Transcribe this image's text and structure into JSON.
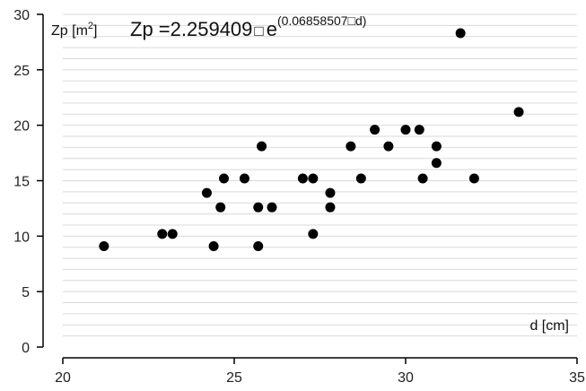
{
  "chart_data": {
    "type": "scatter",
    "title": "",
    "xlabel": "d [cm]",
    "ylabel": {
      "base": "Zp [m",
      "sup": "2",
      "close": "]"
    },
    "annotation": {
      "lhs": "Zp =",
      "coef": "2.259409",
      "sep": "□",
      "e": "e",
      "exponent": "(0.06858507□d)"
    },
    "xlim": [
      20,
      35
    ],
    "ylim": [
      0,
      30
    ],
    "x_ticks": [
      20,
      25,
      30,
      35
    ],
    "y_ticks": [
      0,
      5,
      10,
      15,
      20,
      25,
      30
    ],
    "grid": true,
    "marker_color": "#000000",
    "grid_color": "#d9d9d9",
    "points": [
      {
        "x": 21.2,
        "y": 9.1
      },
      {
        "x": 22.9,
        "y": 10.2
      },
      {
        "x": 23.2,
        "y": 10.2
      },
      {
        "x": 24.2,
        "y": 13.9
      },
      {
        "x": 24.4,
        "y": 9.1
      },
      {
        "x": 24.6,
        "y": 12.6
      },
      {
        "x": 24.7,
        "y": 15.2
      },
      {
        "x": 25.3,
        "y": 15.2
      },
      {
        "x": 25.7,
        "y": 12.6
      },
      {
        "x": 25.7,
        "y": 9.1
      },
      {
        "x": 25.8,
        "y": 18.1
      },
      {
        "x": 26.1,
        "y": 12.6
      },
      {
        "x": 27.0,
        "y": 15.2
      },
      {
        "x": 27.3,
        "y": 15.2
      },
      {
        "x": 27.3,
        "y": 10.2
      },
      {
        "x": 27.8,
        "y": 13.9
      },
      {
        "x": 27.8,
        "y": 12.6
      },
      {
        "x": 28.4,
        "y": 18.1
      },
      {
        "x": 28.7,
        "y": 15.2
      },
      {
        "x": 29.1,
        "y": 19.6
      },
      {
        "x": 29.5,
        "y": 18.1
      },
      {
        "x": 30.0,
        "y": 19.6
      },
      {
        "x": 30.4,
        "y": 19.6
      },
      {
        "x": 30.5,
        "y": 15.2
      },
      {
        "x": 30.9,
        "y": 18.1
      },
      {
        "x": 30.9,
        "y": 16.6
      },
      {
        "x": 31.6,
        "y": 28.3
      },
      {
        "x": 32.0,
        "y": 15.2
      },
      {
        "x": 33.3,
        "y": 21.2
      }
    ]
  }
}
